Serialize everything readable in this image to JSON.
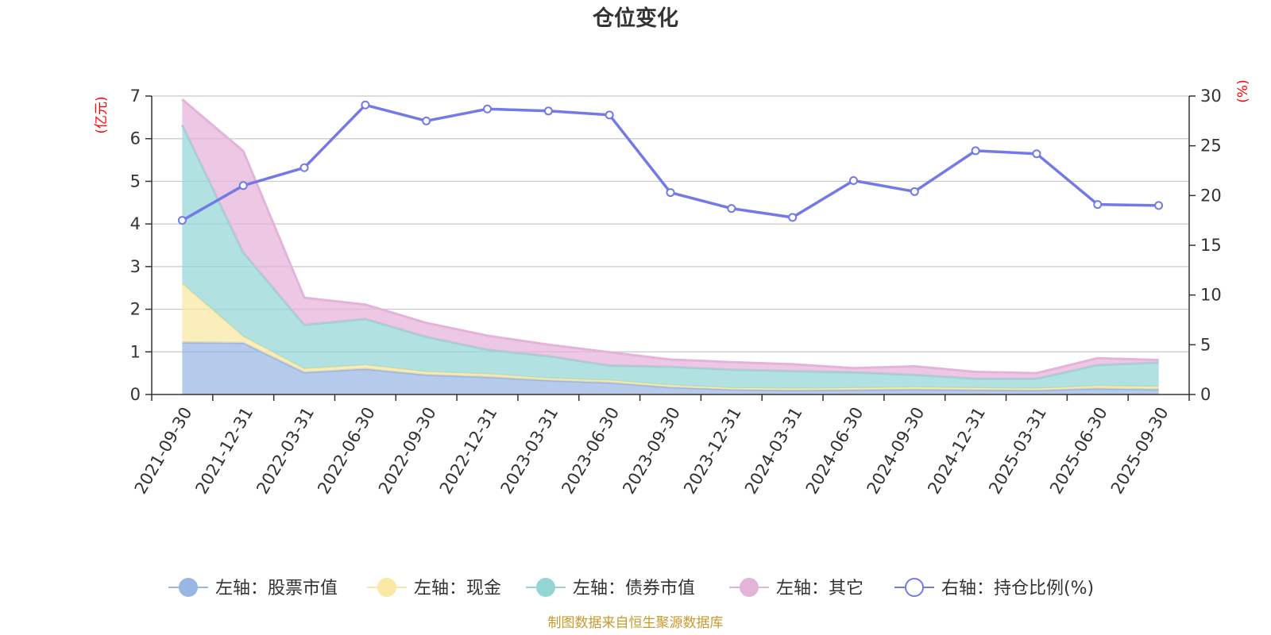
{
  "chart_data": {
    "type": "area",
    "title": "仓位变化",
    "left_unit": "(亿元)",
    "right_unit": "(%)",
    "categories": [
      "2021-09-30",
      "2021-12-31",
      "2022-03-31",
      "2022-06-30",
      "2022-09-30",
      "2022-12-31",
      "2023-03-31",
      "2023-06-30",
      "2023-09-30",
      "2023-12-31",
      "2024-03-31",
      "2024-06-30",
      "2024-09-30",
      "2024-12-31",
      "2025-03-31",
      "2025-06-30",
      "2025-09-30"
    ],
    "left_axis": {
      "min": 0,
      "max": 7,
      "ticks": [
        0,
        1,
        2,
        3,
        4,
        5,
        6,
        7
      ]
    },
    "right_axis": {
      "min": 0,
      "max": 30,
      "ticks": [
        0,
        5,
        10,
        15,
        20,
        25,
        30
      ]
    },
    "grid": true,
    "legend_position": "bottom",
    "stacked_series": [
      {
        "name": "左轴：股票市值",
        "color": "#9ab6e3",
        "values": [
          1.22,
          1.21,
          0.52,
          0.6,
          0.46,
          0.41,
          0.33,
          0.28,
          0.17,
          0.12,
          0.1,
          0.11,
          0.12,
          0.11,
          0.1,
          0.14,
          0.12
        ]
      },
      {
        "name": "左轴：现金",
        "color": "#fae8a4",
        "values": [
          1.38,
          0.15,
          0.08,
          0.09,
          0.07,
          0.07,
          0.05,
          0.05,
          0.05,
          0.03,
          0.04,
          0.04,
          0.05,
          0.04,
          0.04,
          0.06,
          0.06
        ]
      },
      {
        "name": "左轴：债券市值",
        "color": "#94d6d6",
        "values": [
          3.72,
          1.97,
          1.03,
          1.08,
          0.82,
          0.57,
          0.52,
          0.35,
          0.43,
          0.43,
          0.41,
          0.37,
          0.29,
          0.22,
          0.23,
          0.49,
          0.57
        ]
      },
      {
        "name": "左轴：其它",
        "color": "#e4b3d9",
        "values": [
          0.6,
          2.38,
          0.64,
          0.34,
          0.33,
          0.33,
          0.27,
          0.31,
          0.17,
          0.18,
          0.16,
          0.1,
          0.2,
          0.16,
          0.13,
          0.16,
          0.06
        ]
      }
    ],
    "line_series": {
      "name": "右轴：持仓比例(%)",
      "color": "#7479e8",
      "values": [
        17.5,
        21.0,
        22.8,
        29.1,
        27.5,
        28.7,
        28.5,
        28.1,
        20.3,
        18.7,
        17.8,
        21.5,
        20.4,
        24.5,
        24.2,
        19.1,
        19.0
      ]
    },
    "source": "制图数据来自恒生聚源数据库"
  }
}
